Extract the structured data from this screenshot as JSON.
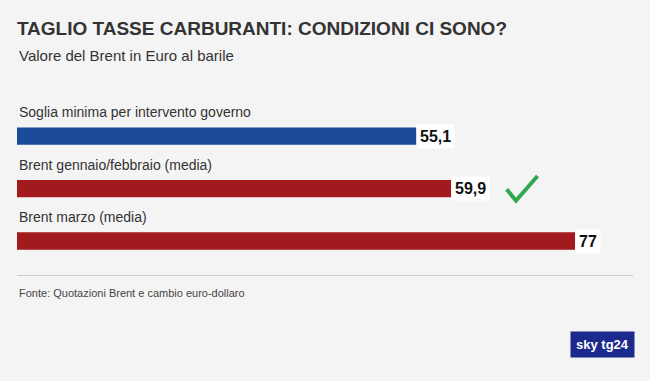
{
  "chart_data": {
    "type": "bar",
    "orientation": "horizontal",
    "title": "TAGLIO TASSE CARBURANTI: CONDIZIONI CI SONO?",
    "subtitle": "Valore del Brent in Euro al barile",
    "categories": [
      "Soglia minima per intervento governo",
      "Brent gennaio/febbraio (media)",
      "Brent marzo (media)"
    ],
    "values": [
      55.1,
      59.9,
      77
    ],
    "value_labels": [
      "55,1",
      "59,9",
      "77"
    ],
    "colors": [
      "#1b4a9a",
      "#a21a1d",
      "#a21a1d"
    ],
    "xlim": [
      0,
      85
    ],
    "xticks": [],
    "tick_labels": false,
    "data_labels": true,
    "grid": false,
    "annotations": [
      "Fonte: Quotazioni Brent e cambio euro-dollaro",
      "sky tg24"
    ]
  }
}
